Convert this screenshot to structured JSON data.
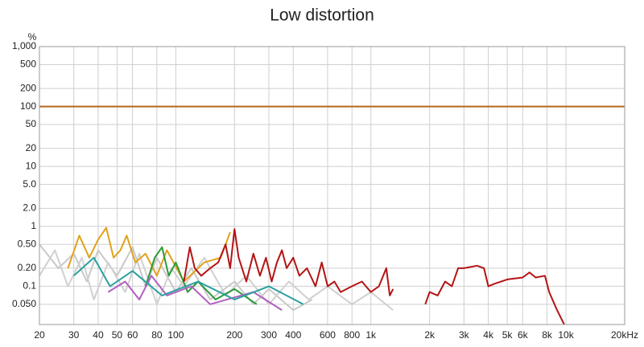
{
  "chart_data": {
    "type": "line",
    "title": "Low distortion",
    "y_label": "%",
    "log_x": true,
    "log_y": true,
    "grid": true,
    "xlim": [
      20,
      20000
    ],
    "ylim": [
      0.023,
      1000
    ],
    "xticks": [
      20,
      30,
      40,
      50,
      60,
      80,
      100,
      200,
      300,
      400,
      600,
      800,
      {
        "value": 1000,
        "label": "1k"
      },
      {
        "value": 2000,
        "label": "2k"
      },
      {
        "value": 3000,
        "label": "3k"
      },
      {
        "value": 4000,
        "label": "4k"
      },
      {
        "value": 5000,
        "label": "5k"
      },
      {
        "value": 6000,
        "label": "6k"
      },
      {
        "value": 8000,
        "label": "8k"
      },
      {
        "value": 10000,
        "label": "10k"
      },
      {
        "value": 20000,
        "label": "20kHz"
      }
    ],
    "yticks": [
      {
        "value": 1000,
        "label": "1,000"
      },
      500,
      200,
      100,
      50,
      20,
      10,
      {
        "value": 5,
        "label": "5.0"
      },
      {
        "value": 2,
        "label": "2.0"
      },
      1,
      {
        "value": 0.5,
        "label": "0.50"
      },
      {
        "value": 0.2,
        "label": "0.20"
      },
      0.1,
      {
        "value": 0.05,
        "label": "0.050"
      }
    ],
    "series": [
      {
        "color": "#c8c8c8",
        "x": [
          20,
          25,
          30,
          35,
          40,
          50,
          60,
          70,
          80,
          100,
          120,
          150,
          200,
          250,
          300,
          400,
          500
        ],
        "values": [
          0.5,
          0.2,
          0.35,
          0.12,
          0.4,
          0.15,
          0.45,
          0.1,
          0.3,
          0.08,
          0.2,
          0.06,
          0.12,
          0.05,
          0.09,
          0.04,
          0.06
        ]
      },
      {
        "color": "#d0d0d0",
        "x": [
          20,
          24,
          28,
          33,
          38,
          45,
          55,
          65,
          80,
          95,
          110,
          140,
          180,
          230,
          300,
          380,
          480,
          600,
          800,
          1000,
          1300
        ],
        "values": [
          0.15,
          0.4,
          0.1,
          0.3,
          0.06,
          0.25,
          0.08,
          0.35,
          0.05,
          0.2,
          0.1,
          0.3,
          0.07,
          0.15,
          0.05,
          0.12,
          0.06,
          0.1,
          0.05,
          0.08,
          0.04
        ]
      },
      {
        "color": "#e0a21a",
        "x": [
          28,
          32,
          36,
          40,
          44,
          48,
          52,
          56,
          62,
          70,
          80,
          90,
          110,
          140,
          170,
          190
        ],
        "values": [
          0.2,
          0.7,
          0.3,
          0.6,
          0.95,
          0.3,
          0.4,
          0.7,
          0.25,
          0.35,
          0.15,
          0.4,
          0.12,
          0.25,
          0.3,
          0.8
        ]
      },
      {
        "color": "#2a9a3a",
        "x": [
          70,
          78,
          85,
          92,
          100,
          115,
          130,
          160,
          200,
          260
        ],
        "values": [
          0.1,
          0.3,
          0.45,
          0.15,
          0.25,
          0.08,
          0.12,
          0.06,
          0.09,
          0.05
        ]
      },
      {
        "color": "#b060c0",
        "x": [
          45,
          55,
          65,
          75,
          90,
          120,
          150,
          250,
          350
        ],
        "values": [
          0.08,
          0.12,
          0.06,
          0.15,
          0.07,
          0.1,
          0.05,
          0.08,
          0.04
        ]
      },
      {
        "color": "#2aa0a0",
        "x": [
          30,
          38,
          46,
          60,
          85,
          130,
          200,
          300,
          450
        ],
        "values": [
          0.15,
          0.3,
          0.1,
          0.18,
          0.07,
          0.12,
          0.06,
          0.1,
          0.05
        ]
      },
      {
        "color": "#b8651b",
        "x": [
          20,
          20000
        ],
        "values": [
          100,
          100
        ]
      },
      {
        "color": "#b41414",
        "x": [
          110,
          118,
          125,
          135,
          150,
          165,
          180,
          190,
          200,
          210,
          230,
          250,
          270,
          290,
          310,
          330,
          350,
          370,
          400,
          430,
          470,
          520,
          560,
          600,
          650,
          700,
          800,
          900,
          1000,
          1100,
          1200,
          1250,
          1300,
          1500,
          1900,
          2000,
          2200,
          2400,
          2600,
          2800,
          3000,
          3500,
          3800,
          4000,
          4300,
          5000,
          6000,
          6500,
          7000,
          7800,
          8200,
          9000,
          9800
        ],
        "values": [
          0.12,
          0.45,
          0.2,
          0.15,
          0.2,
          0.25,
          0.5,
          0.2,
          0.9,
          0.3,
          0.12,
          0.35,
          0.15,
          0.3,
          0.12,
          0.25,
          0.4,
          0.2,
          0.3,
          0.15,
          0.2,
          0.1,
          0.25,
          0.1,
          0.12,
          0.08,
          0.1,
          0.12,
          0.08,
          0.1,
          0.2,
          0.07,
          0.09,
          null,
          0.05,
          0.08,
          0.07,
          0.12,
          0.1,
          0.2,
          0.2,
          0.22,
          0.2,
          0.1,
          0.11,
          0.13,
          0.14,
          0.17,
          0.14,
          0.15,
          0.08,
          0.04,
          0.023
        ]
      }
    ]
  }
}
